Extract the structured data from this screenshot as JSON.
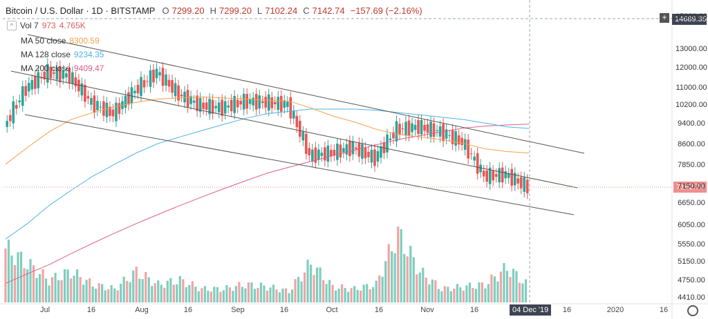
{
  "header": {
    "title": "Bitcoin / U.S. Dollar · 1D · BITSTAMP",
    "o_label": "O",
    "o_value": "7299.20",
    "h_label": "H",
    "h_value": "7299.20",
    "l_label": "L",
    "l_value": "7102.24",
    "c_label": "C",
    "c_value": "7142.74",
    "change": "−157.69 (−2.16%)"
  },
  "legend": [
    {
      "name": "Vol 7",
      "values": "973",
      "extra": "4.765K",
      "color": "#e8a0a0",
      "collapse": "^"
    },
    {
      "name": "MA 50 close",
      "values": "8300.59",
      "color": "#f5a04a"
    },
    {
      "name": "MA 128 close",
      "values": "9234.35",
      "color": "#4ab3e8"
    },
    {
      "name": "MA 200 close",
      "values": "9409.47",
      "color": "#e05c8a"
    }
  ],
  "price_axis": {
    "ticks": [
      "15000.00",
      "13000.00",
      "12000.00",
      "11000.00",
      "10200.00",
      "9400.00",
      "8600.00",
      "7850.00",
      "7150.00",
      "6650.00",
      "6050.00",
      "5550.00",
      "5150.00",
      "4750.00",
      "4410.00"
    ],
    "current_price": "7142.74",
    "cursor_price": "14689.35",
    "plus": "+"
  },
  "time_axis": {
    "labels": [
      "Jul",
      "16",
      "Aug",
      "16",
      "Sep",
      "16",
      "Oct",
      "16",
      "Nov",
      "16",
      "16",
      "2020",
      "16"
    ],
    "cursor_date": "04 Dec '19"
  },
  "colors": {
    "up": "#26a69a",
    "down": "#ef5350",
    "vol_up": "#7fcdbf",
    "vol_down": "#f2a3a3",
    "ma50": "#f5a04a",
    "ma128": "#4ab3e8",
    "ma200": "#e05c8a",
    "channel": "#555555"
  },
  "chart_data": {
    "type": "candlestick",
    "title": "Bitcoin / U.S. Dollar · 1D · BITSTAMP",
    "ylim": [
      4300,
      15500
    ],
    "y_scale": "log",
    "x": [
      "2019-06-17",
      "2019-06-24",
      "2019-07-01",
      "2019-07-08",
      "2019-07-15",
      "2019-07-22",
      "2019-07-29",
      "2019-08-05",
      "2019-08-12",
      "2019-08-19",
      "2019-08-26",
      "2019-09-02",
      "2019-09-09",
      "2019-09-16",
      "2019-09-23",
      "2019-09-30",
      "2019-10-07",
      "2019-10-14",
      "2019-10-21",
      "2019-10-28",
      "2019-11-04",
      "2019-11-11",
      "2019-11-18",
      "2019-11-25",
      "2019-12-02"
    ],
    "series": [
      {
        "name": "close",
        "values": [
          9300,
          11000,
          11800,
          11600,
          10300,
          9850,
          10900,
          11800,
          10700,
          10200,
          10100,
          10400,
          10350,
          10250,
          8200,
          8300,
          8500,
          8100,
          9200,
          9300,
          9100,
          8700,
          7500,
          7550,
          7142.74
        ]
      },
      {
        "name": "MA 50 close",
        "values": [
          7900,
          8500,
          9100,
          9600,
          9900,
          10150,
          10350,
          10500,
          10550,
          10600,
          10550,
          10500,
          10450,
          10400,
          10100,
          9750,
          9500,
          9200,
          9000,
          8900,
          8800,
          8650,
          8450,
          8350,
          8300.59
        ]
      },
      {
        "name": "MA 128 close",
        "values": [
          5700,
          6100,
          6600,
          7050,
          7500,
          7900,
          8300,
          8650,
          8900,
          9150,
          9400,
          9650,
          9850,
          9950,
          10050,
          10050,
          10050,
          10000,
          9900,
          9800,
          9700,
          9600,
          9450,
          9300,
          9234.35
        ]
      },
      {
        "name": "MA 200 close",
        "values": [
          4700,
          4900,
          5100,
          5350,
          5600,
          5850,
          6100,
          6350,
          6600,
          6850,
          7100,
          7350,
          7600,
          7800,
          8000,
          8200,
          8400,
          8600,
          8800,
          8950,
          9100,
          9250,
          9330,
          9380,
          9409.47
        ]
      },
      {
        "name": "Vol 7",
        "values": [
          5700,
          5300,
          4900,
          5100,
          4800,
          4700,
          5100,
          4800,
          4900,
          4700,
          4700,
          4800,
          4750,
          4650,
          5300,
          4750,
          4700,
          4800,
          6100,
          5100,
          4700,
          4750,
          4800,
          5200,
          4765
        ]
      }
    ]
  }
}
